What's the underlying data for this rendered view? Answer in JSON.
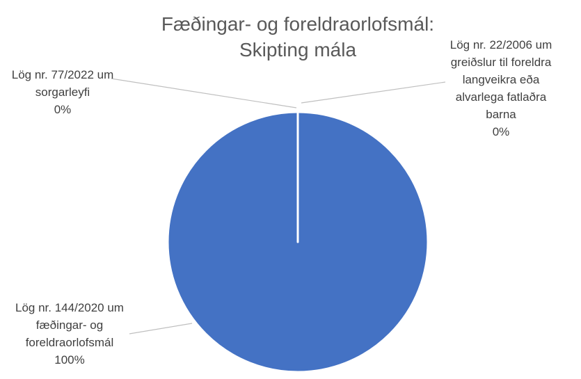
{
  "chart_data": {
    "type": "pie",
    "title": "Fæðingar- og foreldraorlofsmál: Skipting mála",
    "categories": [
      "Lög nr. 22/2006 um greiðslur til foreldra langveikra eða alvarlega fatlaðra barna",
      "Lög nr. 144/2020 um fæðingar- og foreldraorlofsmál",
      "Lög nr. 77/2022 um sorgarleyfi"
    ],
    "values": [
      0,
      100,
      0
    ],
    "value_labels": [
      "0%",
      "100%",
      "0%"
    ],
    "colors": [
      "#4472c4",
      "#4472c4",
      "#4472c4"
    ]
  }
}
